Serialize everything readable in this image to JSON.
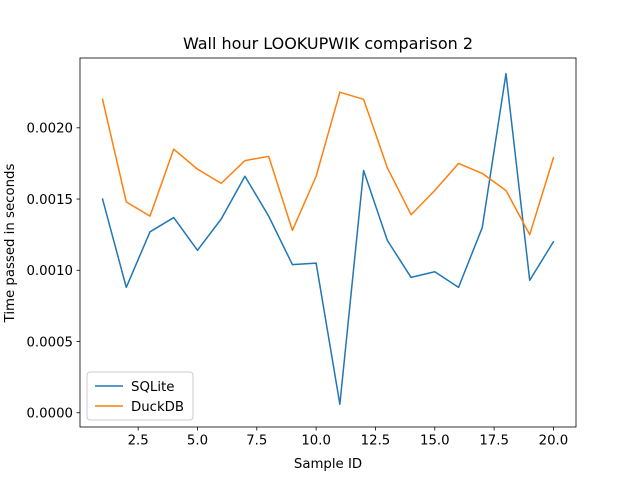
{
  "chart_data": {
    "type": "line",
    "title": "Wall hour LOOKUPWIK comparison 2",
    "xlabel": "Sample ID",
    "ylabel": "Time passed in seconds",
    "x": [
      1,
      2,
      3,
      4,
      5,
      6,
      7,
      8,
      9,
      10,
      11,
      12,
      13,
      14,
      15,
      16,
      17,
      18,
      19,
      20
    ],
    "xlim": [
      0.05,
      20.95
    ],
    "ylim": [
      -0.0001,
      0.00249
    ],
    "xticks": [
      "2.5",
      "5.0",
      "7.5",
      "10.0",
      "12.5",
      "15.0",
      "17.5",
      "20.0"
    ],
    "yticks": [
      "0.0000",
      "0.0005",
      "0.0010",
      "0.0015",
      "0.0020"
    ],
    "grid": false,
    "legend_position": "lower left",
    "series": [
      {
        "name": "SQLite",
        "color": "#1f77b4",
        "values": [
          0.0015,
          0.00088,
          0.00127,
          0.00137,
          0.00114,
          0.00136,
          0.00166,
          0.00138,
          0.00104,
          0.00105,
          6e-05,
          0.0017,
          0.00121,
          0.00095,
          0.00099,
          0.00088,
          0.0013,
          0.00238,
          0.00093,
          0.0012
        ]
      },
      {
        "name": "DuckDB",
        "color": "#ff7f0e",
        "values": [
          0.0022,
          0.00148,
          0.00138,
          0.00185,
          0.00171,
          0.00161,
          0.00177,
          0.0018,
          0.00128,
          0.00166,
          0.00225,
          0.0022,
          0.00172,
          0.00139,
          0.00156,
          0.00175,
          0.00168,
          0.00156,
          0.00125,
          0.00179
        ]
      }
    ]
  }
}
